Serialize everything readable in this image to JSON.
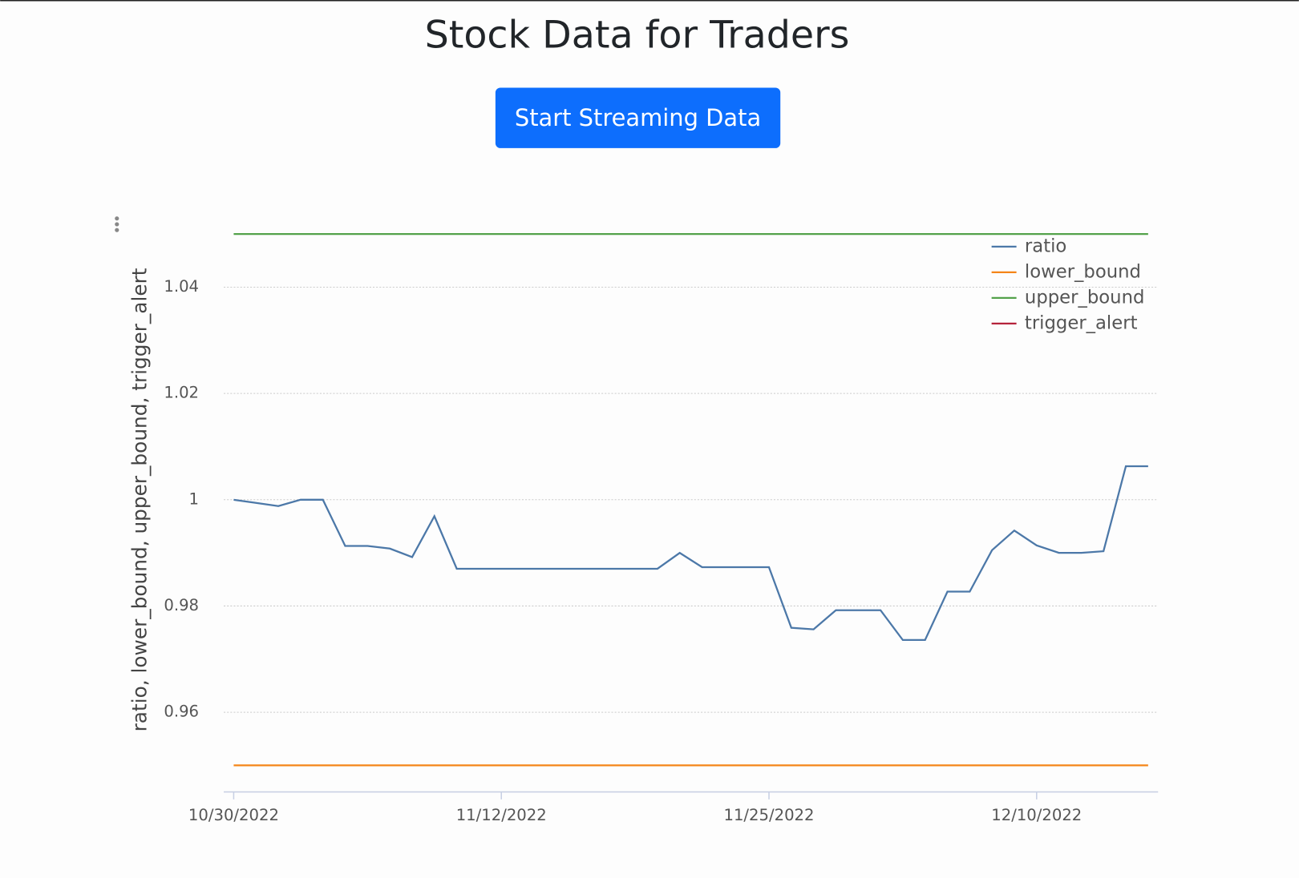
{
  "page": {
    "title": "Stock Data for Traders",
    "button": "Start Streaming Data"
  },
  "chart_data": {
    "type": "line",
    "y_label": "ratio, lower_bound, upper_bound, trigger_alert",
    "categories": [
      "10/30/2022",
      null,
      null,
      null,
      null,
      null,
      null,
      null,
      null,
      null,
      null,
      null,
      "11/12/2022",
      null,
      null,
      null,
      null,
      null,
      null,
      null,
      null,
      null,
      null,
      null,
      "11/25/2022",
      null,
      null,
      null,
      null,
      null,
      null,
      null,
      null,
      null,
      null,
      null,
      "12/10/2022",
      null,
      null,
      null,
      null,
      null
    ],
    "series": [
      {
        "name": "ratio",
        "color": "#4c78a8",
        "values": [
          1.0,
          0.9994,
          0.9988,
          1.0,
          1.0,
          0.9913,
          0.9913,
          0.9908,
          0.9892,
          0.9969,
          0.987,
          0.987,
          0.987,
          0.987,
          0.987,
          0.987,
          0.987,
          0.987,
          0.987,
          0.987,
          0.99,
          0.9873,
          0.9873,
          0.9873,
          0.9873,
          0.9759,
          0.9756,
          0.9792,
          0.9792,
          0.9792,
          0.9736,
          0.9736,
          0.9827,
          0.9827,
          0.9905,
          0.9942,
          0.9914,
          0.99,
          0.99,
          0.9903,
          1.0063,
          1.0063
        ]
      },
      {
        "name": "lower_bound",
        "color": "#f58518",
        "values": [
          0.95,
          0.95,
          0.95,
          0.95,
          0.95,
          0.95,
          0.95,
          0.95,
          0.95,
          0.95,
          0.95,
          0.95,
          0.95,
          0.95,
          0.95,
          0.95,
          0.95,
          0.95,
          0.95,
          0.95,
          0.95,
          0.95,
          0.95,
          0.95,
          0.95,
          0.95,
          0.95,
          0.95,
          0.95,
          0.95,
          0.95,
          0.95,
          0.95,
          0.95,
          0.95,
          0.95,
          0.95,
          0.95,
          0.95,
          0.95,
          0.95,
          0.95
        ]
      },
      {
        "name": "upper_bound",
        "color": "#54a24b",
        "values": [
          1.05,
          1.05,
          1.05,
          1.05,
          1.05,
          1.05,
          1.05,
          1.05,
          1.05,
          1.05,
          1.05,
          1.05,
          1.05,
          1.05,
          1.05,
          1.05,
          1.05,
          1.05,
          1.05,
          1.05,
          1.05,
          1.05,
          1.05,
          1.05,
          1.05,
          1.05,
          1.05,
          1.05,
          1.05,
          1.05,
          1.05,
          1.05,
          1.05,
          1.05,
          1.05,
          1.05,
          1.05,
          1.05,
          1.05,
          1.05,
          1.05,
          1.05
        ]
      },
      {
        "name": "trigger_alert",
        "color": "#b5233b",
        "values": [
          null,
          null,
          null,
          null,
          null,
          null,
          null,
          null,
          null,
          null,
          null,
          null,
          null,
          null,
          null,
          null,
          null,
          null,
          null,
          null,
          null,
          null,
          null,
          null,
          null,
          null,
          null,
          null,
          null,
          null,
          null,
          null,
          null,
          null,
          null,
          null,
          null,
          null,
          null,
          null,
          null,
          null
        ]
      }
    ],
    "ylim": [
      0.945,
      1.052
    ],
    "yticks": [
      0.96,
      0.98,
      1,
      1.02,
      1.04
    ],
    "grid": true,
    "legend": "top-right"
  }
}
